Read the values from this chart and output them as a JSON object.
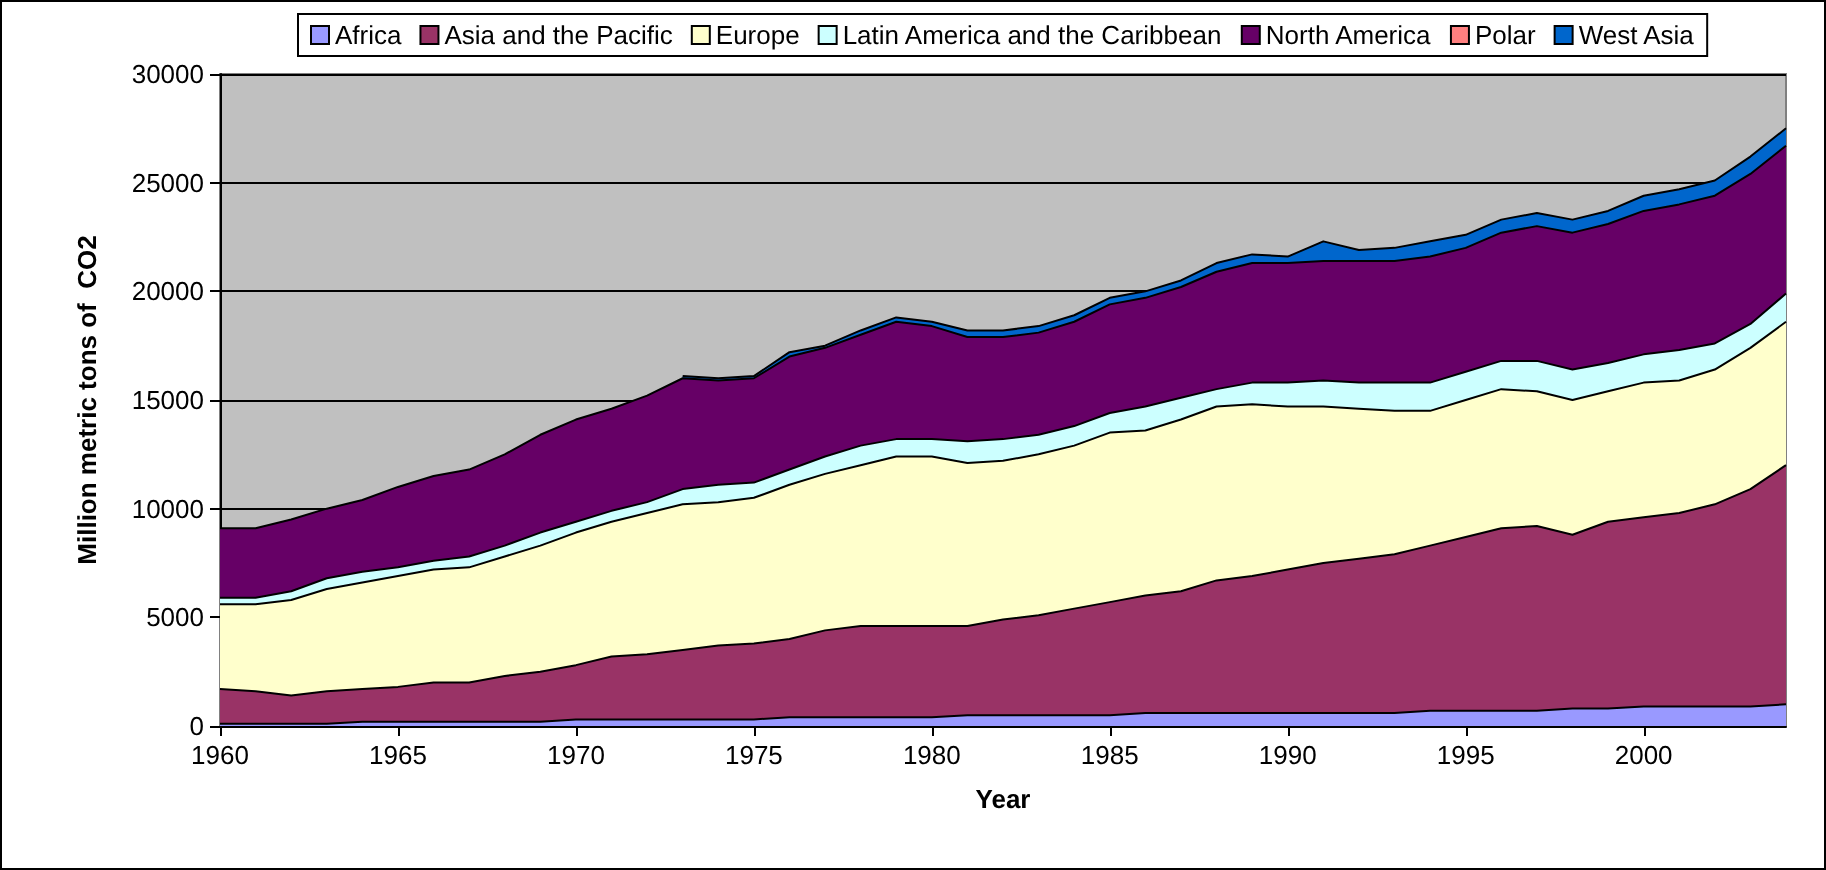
{
  "chart_data": {
    "type": "area",
    "xlabel": "Year",
    "ylabel": "Million metric tons of  CO2",
    "stacked": true,
    "grid": "y",
    "legend": "top",
    "x": [
      1960,
      1961,
      1962,
      1963,
      1964,
      1965,
      1966,
      1967,
      1968,
      1969,
      1970,
      1971,
      1972,
      1973,
      1974,
      1975,
      1976,
      1977,
      1978,
      1979,
      1980,
      1981,
      1982,
      1983,
      1984,
      1985,
      1986,
      1987,
      1988,
      1989,
      1990,
      1991,
      1992,
      1993,
      1994,
      1995,
      1996,
      1997,
      1998,
      1999,
      2000,
      2001,
      2002,
      2003,
      2004
    ],
    "xlim": [
      1960,
      2004
    ],
    "xticks": [
      1960,
      1965,
      1970,
      1975,
      1980,
      1985,
      1990,
      1995,
      2000
    ],
    "ylim": [
      0,
      30000
    ],
    "yticks": [
      0,
      5000,
      10000,
      15000,
      20000,
      25000,
      30000
    ],
    "series": [
      {
        "name": "Africa",
        "color": "#9999ff",
        "values": [
          100,
          100,
          100,
          100,
          200,
          200,
          200,
          200,
          200,
          200,
          300,
          300,
          300,
          300,
          300,
          300,
          400,
          400,
          400,
          400,
          400,
          500,
          500,
          500,
          500,
          500,
          600,
          600,
          600,
          600,
          600,
          600,
          600,
          600,
          700,
          700,
          700,
          700,
          800,
          800,
          900,
          900,
          900,
          900,
          1000
        ]
      },
      {
        "name": "Asia and the Pacific",
        "color": "#993366",
        "values": [
          1600,
          1500,
          1300,
          1500,
          1500,
          1600,
          1800,
          1800,
          2100,
          2300,
          2500,
          2900,
          3000,
          3200,
          3400,
          3500,
          3600,
          4000,
          4200,
          4200,
          4200,
          4100,
          4400,
          4600,
          4900,
          5200,
          5400,
          5600,
          6100,
          6300,
          6600,
          6900,
          7100,
          7300,
          7600,
          8000,
          8400,
          8500,
          8000,
          8600,
          8700,
          8900,
          9300,
          10000,
          11000
        ]
      },
      {
        "name": "Europe",
        "color": "#ffffcc",
        "values": [
          3900,
          4000,
          4400,
          4700,
          4900,
          5100,
          5200,
          5300,
          5500,
          5800,
          6100,
          6200,
          6500,
          6700,
          6600,
          6700,
          7100,
          7200,
          7400,
          7800,
          7800,
          7500,
          7300,
          7400,
          7500,
          7800,
          7600,
          7900,
          8000,
          7900,
          7500,
          7200,
          6900,
          6600,
          6200,
          6300,
          6400,
          6200,
          6200,
          6000,
          6200,
          6100,
          6200,
          6500,
          6600
        ]
      },
      {
        "name": "Latin America and the Caribbean",
        "color": "#ccffff",
        "values": [
          300,
          300,
          400,
          500,
          500,
          400,
          400,
          500,
          500,
          600,
          500,
          500,
          500,
          700,
          800,
          700,
          700,
          800,
          900,
          800,
          800,
          1000,
          1000,
          900,
          900,
          900,
          1100,
          1000,
          800,
          1000,
          1100,
          1200,
          1200,
          1300,
          1300,
          1300,
          1300,
          1400,
          1400,
          1300,
          1300,
          1400,
          1200,
          1100,
          1300
        ]
      },
      {
        "name": "North America",
        "color": "#660066",
        "values": [
          3200,
          3200,
          3300,
          3200,
          3300,
          3700,
          3900,
          4000,
          4200,
          4500,
          4700,
          4700,
          4900,
          5100,
          4800,
          4800,
          5200,
          5000,
          5100,
          5400,
          5200,
          4800,
          4700,
          4700,
          4800,
          5000,
          5000,
          5100,
          5400,
          5500,
          5500,
          5500,
          5600,
          5600,
          5800,
          5700,
          5900,
          6200,
          6300,
          6400,
          6600,
          6700,
          6800,
          6900,
          6800
        ]
      },
      {
        "name": "Polar",
        "color": "#ff8080",
        "values": [
          null,
          null,
          null,
          null,
          null,
          null,
          null,
          null,
          null,
          null,
          null,
          null,
          null,
          null,
          null,
          null,
          null,
          null,
          null,
          null,
          null,
          null,
          null,
          null,
          null,
          null,
          null,
          null,
          null,
          null,
          null,
          null,
          null,
          null,
          null,
          null,
          null,
          null,
          null,
          null,
          null,
          null,
          null,
          null,
          null
        ]
      },
      {
        "name": "West Asia",
        "color": "#0066cc",
        "values": [
          null,
          null,
          null,
          null,
          null,
          null,
          null,
          null,
          null,
          null,
          null,
          null,
          null,
          100,
          100,
          100,
          200,
          100,
          200,
          200,
          200,
          300,
          300,
          300,
          300,
          300,
          300,
          300,
          400,
          400,
          300,
          900,
          500,
          600,
          700,
          600,
          600,
          600,
          600,
          600,
          700,
          700,
          700,
          800,
          800
        ]
      }
    ]
  }
}
